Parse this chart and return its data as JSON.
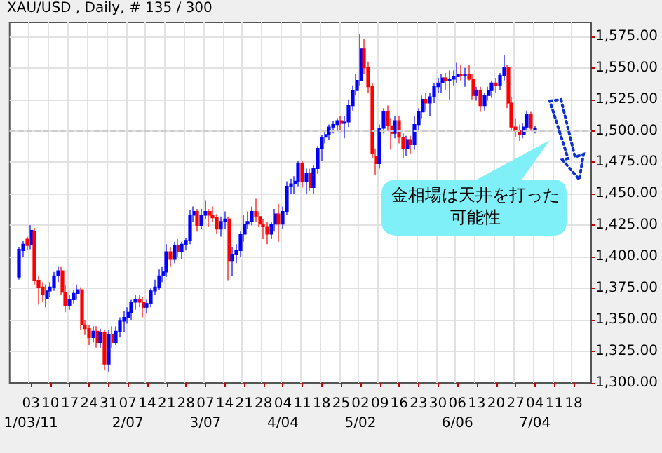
{
  "chart_data": {
    "type": "candlestick",
    "title": "XAU/USD , Daily, # 135 / 300",
    "annotations": [
      "金相場は天井を打った可能性"
    ],
    "categories": [
      null,
      null,
      null,
      null,
      null,
      "03\n1/03/11",
      null,
      null,
      null,
      null,
      "10",
      null,
      null,
      null,
      null,
      "17",
      null,
      null,
      null,
      null,
      "24",
      null,
      null,
      null,
      null,
      "31",
      null,
      null,
      null,
      null,
      "07\n2/07",
      null,
      null,
      null,
      null,
      "14",
      null,
      null,
      null,
      null,
      "21",
      null,
      null,
      null,
      null,
      "28",
      null,
      null,
      null,
      null,
      "07\n3/07",
      null,
      null,
      null,
      null,
      "14",
      null,
      null,
      null,
      null,
      "21",
      null,
      null,
      null,
      null,
      "28",
      null,
      null,
      null,
      null,
      "04\n4/04",
      null,
      null,
      null,
      null,
      "11",
      null,
      null,
      null,
      null,
      "18",
      null,
      null,
      null,
      null,
      "25",
      null,
      null,
      null,
      null,
      "02\n5/02",
      null,
      null,
      null,
      null,
      "09",
      null,
      null,
      null,
      null,
      "16",
      null,
      null,
      null,
      null,
      "23",
      null,
      null,
      null,
      null,
      "30",
      null,
      null,
      null,
      null,
      "06\n6/06",
      null,
      null,
      null,
      null,
      "13",
      null,
      null,
      null,
      null,
      "20",
      null,
      null,
      null,
      null,
      "27",
      null,
      null,
      null,
      null,
      "04\n7/04",
      null,
      null,
      null,
      null,
      "11",
      null,
      null,
      null,
      null,
      "18",
      null,
      null,
      null,
      null
    ],
    "ohlc": [
      null,
      null,
      [
        1384,
        1408,
        1382,
        1406
      ],
      [
        1405,
        1413,
        1400,
        1410
      ],
      [
        1414,
        1416,
        1405,
        1409
      ],
      [
        1410,
        1425,
        1406,
        1421
      ],
      [
        1420,
        1423,
        1378,
        1381
      ],
      [
        1381,
        1385,
        1362,
        1376
      ],
      [
        1376,
        1380,
        1364,
        1370
      ],
      [
        1367,
        1378,
        1360,
        1373
      ],
      [
        1373,
        1380,
        1368,
        1376
      ],
      [
        1376,
        1388,
        1373,
        1385
      ],
      [
        1385,
        1392,
        1380,
        1389
      ],
      [
        1389,
        1392,
        1370,
        1372
      ],
      [
        1372,
        1378,
        1356,
        1361
      ],
      [
        1361,
        1370,
        1358,
        1366
      ],
      [
        1366,
        1374,
        1363,
        1371
      ],
      [
        1371,
        1378,
        1366,
        1374
      ],
      [
        1374,
        1376,
        1342,
        1346
      ],
      [
        1346,
        1350,
        1338,
        1343
      ],
      [
        1343,
        1346,
        1330,
        1336
      ],
      [
        1336,
        1345,
        1332,
        1341
      ],
      [
        1341,
        1345,
        1328,
        1332
      ],
      [
        1332,
        1343,
        1328,
        1340
      ],
      [
        1340,
        1342,
        1310,
        1315
      ],
      [
        1315,
        1342,
        1309,
        1338
      ],
      [
        1338,
        1345,
        1328,
        1332
      ],
      [
        1332,
        1345,
        1330,
        1341
      ],
      [
        1341,
        1352,
        1336,
        1349
      ],
      [
        1349,
        1357,
        1340,
        1352
      ],
      [
        1352,
        1360,
        1347,
        1356
      ],
      [
        1356,
        1366,
        1350,
        1364
      ],
      [
        1364,
        1370,
        1358,
        1366
      ],
      [
        1366,
        1370,
        1360,
        1364
      ],
      [
        1364,
        1368,
        1352,
        1360
      ],
      [
        1360,
        1366,
        1355,
        1363
      ],
      [
        1363,
        1375,
        1360,
        1373
      ],
      [
        1373,
        1382,
        1370,
        1376
      ],
      [
        1376,
        1390,
        1374,
        1385
      ],
      [
        1385,
        1392,
        1380,
        1388
      ],
      [
        1388,
        1410,
        1384,
        1404
      ],
      [
        1404,
        1408,
        1392,
        1398
      ],
      [
        1398,
        1412,
        1395,
        1409
      ],
      [
        1409,
        1414,
        1400,
        1404
      ],
      [
        1404,
        1412,
        1398,
        1410
      ],
      [
        1410,
        1415,
        1405,
        1413
      ],
      [
        1413,
        1437,
        1410,
        1433
      ],
      [
        1433,
        1440,
        1428,
        1436
      ],
      [
        1436,
        1438,
        1420,
        1425
      ],
      [
        1425,
        1438,
        1422,
        1433
      ],
      [
        1433,
        1445,
        1430,
        1436
      ],
      [
        1436,
        1438,
        1424,
        1433
      ],
      [
        1433,
        1440,
        1428,
        1431
      ],
      [
        1431,
        1434,
        1418,
        1422
      ],
      [
        1422,
        1432,
        1416,
        1428
      ],
      [
        1428,
        1436,
        1422,
        1430
      ],
      [
        1430,
        1432,
        1381,
        1397
      ],
      [
        1397,
        1408,
        1385,
        1402
      ],
      [
        1402,
        1410,
        1395,
        1405
      ],
      [
        1405,
        1420,
        1400,
        1418
      ],
      [
        1418,
        1433,
        1412,
        1426
      ],
      [
        1426,
        1436,
        1422,
        1428
      ],
      [
        1428,
        1440,
        1425,
        1436
      ],
      [
        1436,
        1446,
        1428,
        1432
      ],
      [
        1432,
        1436,
        1424,
        1426
      ],
      [
        1426,
        1430,
        1414,
        1424
      ],
      [
        1424,
        1428,
        1410,
        1418
      ],
      [
        1418,
        1428,
        1414,
        1426
      ],
      [
        1426,
        1438,
        1420,
        1434
      ],
      [
        1434,
        1442,
        1412,
        1426
      ],
      [
        1426,
        1440,
        1422,
        1436
      ],
      [
        1436,
        1460,
        1433,
        1456
      ],
      [
        1456,
        1462,
        1450,
        1458
      ],
      [
        1458,
        1464,
        1450,
        1460
      ],
      [
        1460,
        1476,
        1456,
        1474
      ],
      [
        1474,
        1476,
        1455,
        1460
      ],
      [
        1460,
        1470,
        1450,
        1466
      ],
      [
        1466,
        1470,
        1452,
        1455
      ],
      [
        1455,
        1473,
        1450,
        1470
      ],
      [
        1470,
        1488,
        1466,
        1486
      ],
      [
        1486,
        1497,
        1476,
        1495
      ],
      [
        1495,
        1500,
        1490,
        1497
      ],
      [
        1497,
        1505,
        1493,
        1503
      ],
      [
        1503,
        1508,
        1498,
        1505
      ],
      [
        1505,
        1510,
        1500,
        1508
      ],
      [
        1508,
        1512,
        1499,
        1506
      ],
      [
        1506,
        1512,
        1494,
        1507
      ],
      [
        1507,
        1525,
        1503,
        1520
      ],
      [
        1520,
        1536,
        1516,
        1532
      ],
      [
        1532,
        1545,
        1528,
        1540
      ],
      [
        1540,
        1577,
        1536,
        1565
      ],
      [
        1565,
        1573,
        1545,
        1550
      ],
      [
        1550,
        1555,
        1530,
        1535
      ],
      [
        1535,
        1538,
        1478,
        1482
      ],
      [
        1480,
        1486,
        1465,
        1474
      ],
      [
        1474,
        1505,
        1470,
        1502
      ],
      [
        1502,
        1518,
        1498,
        1515
      ],
      [
        1515,
        1520,
        1500,
        1504
      ],
      [
        1504,
        1510,
        1485,
        1498
      ],
      [
        1498,
        1512,
        1494,
        1508
      ],
      [
        1508,
        1512,
        1490,
        1495
      ],
      [
        1495,
        1498,
        1478,
        1486
      ],
      [
        1486,
        1496,
        1480,
        1493
      ],
      [
        1493,
        1496,
        1482,
        1489
      ],
      [
        1489,
        1512,
        1485,
        1505
      ],
      [
        1505,
        1518,
        1500,
        1515
      ],
      [
        1515,
        1528,
        1510,
        1525
      ],
      [
        1525,
        1530,
        1515,
        1522
      ],
      [
        1522,
        1530,
        1512,
        1527
      ],
      [
        1527,
        1538,
        1522,
        1535
      ],
      [
        1535,
        1542,
        1530,
        1538
      ],
      [
        1538,
        1545,
        1530,
        1542
      ],
      [
        1542,
        1546,
        1532,
        1540
      ],
      [
        1540,
        1548,
        1525,
        1541
      ],
      [
        1541,
        1548,
        1536,
        1543
      ],
      [
        1543,
        1554,
        1538,
        1545
      ],
      [
        1545,
        1552,
        1540,
        1544
      ],
      [
        1544,
        1550,
        1535,
        1545
      ],
      [
        1545,
        1552,
        1540,
        1541
      ],
      [
        1541,
        1545,
        1525,
        1528
      ],
      [
        1528,
        1535,
        1524,
        1532
      ],
      [
        1532,
        1535,
        1515,
        1520
      ],
      [
        1520,
        1530,
        1516,
        1528
      ],
      [
        1528,
        1535,
        1524,
        1532
      ],
      [
        1532,
        1540,
        1526,
        1538
      ],
      [
        1538,
        1542,
        1530,
        1536
      ],
      [
        1536,
        1546,
        1532,
        1544
      ],
      [
        1544,
        1560,
        1540,
        1550
      ],
      [
        1550,
        1552,
        1518,
        1522
      ],
      [
        1522,
        1527,
        1500,
        1503
      ],
      [
        1503,
        1510,
        1495,
        1500
      ],
      [
        1500,
        1505,
        1492,
        1497
      ],
      [
        1497,
        1506,
        1494,
        1503
      ],
      [
        1503,
        1516,
        1500,
        1513
      ],
      [
        1513,
        1515,
        1500,
        1502
      ],
      [
        1502,
        1504,
        1498,
        1501
      ],
      null,
      null,
      null,
      null,
      null,
      null,
      null,
      null,
      null,
      null,
      null,
      null,
      null,
      null
    ],
    "colors": [
      null,
      null,
      "#0000ff",
      "#0000ff",
      "#ff0000",
      "#0000ff",
      "#ff0000",
      "#ff0000",
      "#ff0000",
      "#0000ff",
      "#0000ff",
      "#0000ff",
      "#0000ff",
      "#ff0000",
      "#ff0000",
      "#0000ff",
      "#0000ff",
      "#0000ff",
      "#ff0000",
      "#ff0000",
      "#ff0000",
      "#0000ff",
      "#ff0000",
      "#0000ff",
      "#ff0000",
      "#0000ff",
      "#ff0000",
      "#0000ff",
      "#0000ff",
      "#0000ff",
      "#0000ff",
      "#0000ff",
      "#0000ff",
      "#ff0000",
      "#ff0000",
      "#0000ff",
      "#0000ff",
      "#0000ff",
      "#0000ff",
      "#0000ff",
      "#0000ff",
      "#ff0000",
      "#0000ff",
      "#ff0000",
      "#0000ff",
      "#0000ff",
      "#0000ff",
      "#0000ff",
      "#ff0000",
      "#0000ff",
      "#0000ff",
      "#ff0000",
      "#ff0000",
      "#ff0000",
      "#0000ff",
      "#0000ff",
      "#ff0000",
      "#0000ff",
      "#0000ff",
      "#0000ff",
      "#0000ff",
      "#0000ff",
      "#0000ff",
      "#ff0000",
      "#ff0000",
      "#ff0000",
      "#ff0000",
      "#0000ff",
      "#0000ff",
      "#ff0000",
      "#0000ff",
      "#0000ff",
      "#0000ff",
      "#0000ff",
      "#0000ff",
      "#ff0000",
      "#0000ff",
      "#ff0000",
      "#0000ff",
      "#0000ff",
      "#0000ff",
      "#0000ff",
      "#0000ff",
      "#0000ff",
      "#0000ff",
      "#ff0000",
      "#0000ff",
      "#0000ff",
      "#0000ff",
      "#0000ff",
      "#0000ff",
      "#ff0000",
      "#ff0000",
      "#ff0000",
      "#ff0000",
      "#0000ff",
      "#0000ff",
      "#ff0000",
      "#ff0000",
      "#0000ff",
      "#ff0000",
      "#ff0000",
      "#0000ff",
      "#ff0000",
      "#0000ff",
      "#0000ff",
      "#0000ff",
      "#ff0000",
      "#0000ff",
      "#0000ff",
      "#0000ff",
      "#0000ff",
      "#ff0000",
      "#0000ff",
      "#0000ff",
      "#0000ff",
      "#ff0000",
      "#0000ff",
      "#ff0000",
      "#ff0000",
      "#0000ff",
      "#ff0000",
      "#0000ff",
      "#0000ff",
      "#0000ff",
      "#ff0000",
      "#0000ff",
      "#0000ff",
      "#ff0000",
      "#ff0000",
      "#ff0000",
      "#ff0000",
      "#0000ff",
      "#0000ff",
      "#ff0000",
      "#0000ff",
      null,
      null,
      null,
      null,
      null,
      null,
      null,
      null,
      null,
      null,
      null,
      null,
      null,
      null
    ],
    "ylim": [
      1300,
      1586
    ],
    "yticks": [
      {
        "value": 1300,
        "label": "1,300.00"
      },
      {
        "value": 1325,
        "label": "1,325.00"
      },
      {
        "value": 1350,
        "label": "1,350.00"
      },
      {
        "value": 1375,
        "label": "1,375.00"
      },
      {
        "value": 1400,
        "label": "1,400.00"
      },
      {
        "value": 1425,
        "label": "1,425.00"
      },
      {
        "value": 1450,
        "label": "1,450.00"
      },
      {
        "value": 1475,
        "label": "1,475.00"
      },
      {
        "value": 1500,
        "label": "1,500.00"
      },
      {
        "value": 1525,
        "label": "1,525.00"
      },
      {
        "value": 1550,
        "label": "1,550.00"
      },
      {
        "value": 1575,
        "label": "1,575.00"
      }
    ],
    "ref_lines": [
      {
        "axis": "y",
        "value": 1500,
        "color": "#cccccc",
        "line_style": "dashed"
      }
    ],
    "grid": true
  }
}
